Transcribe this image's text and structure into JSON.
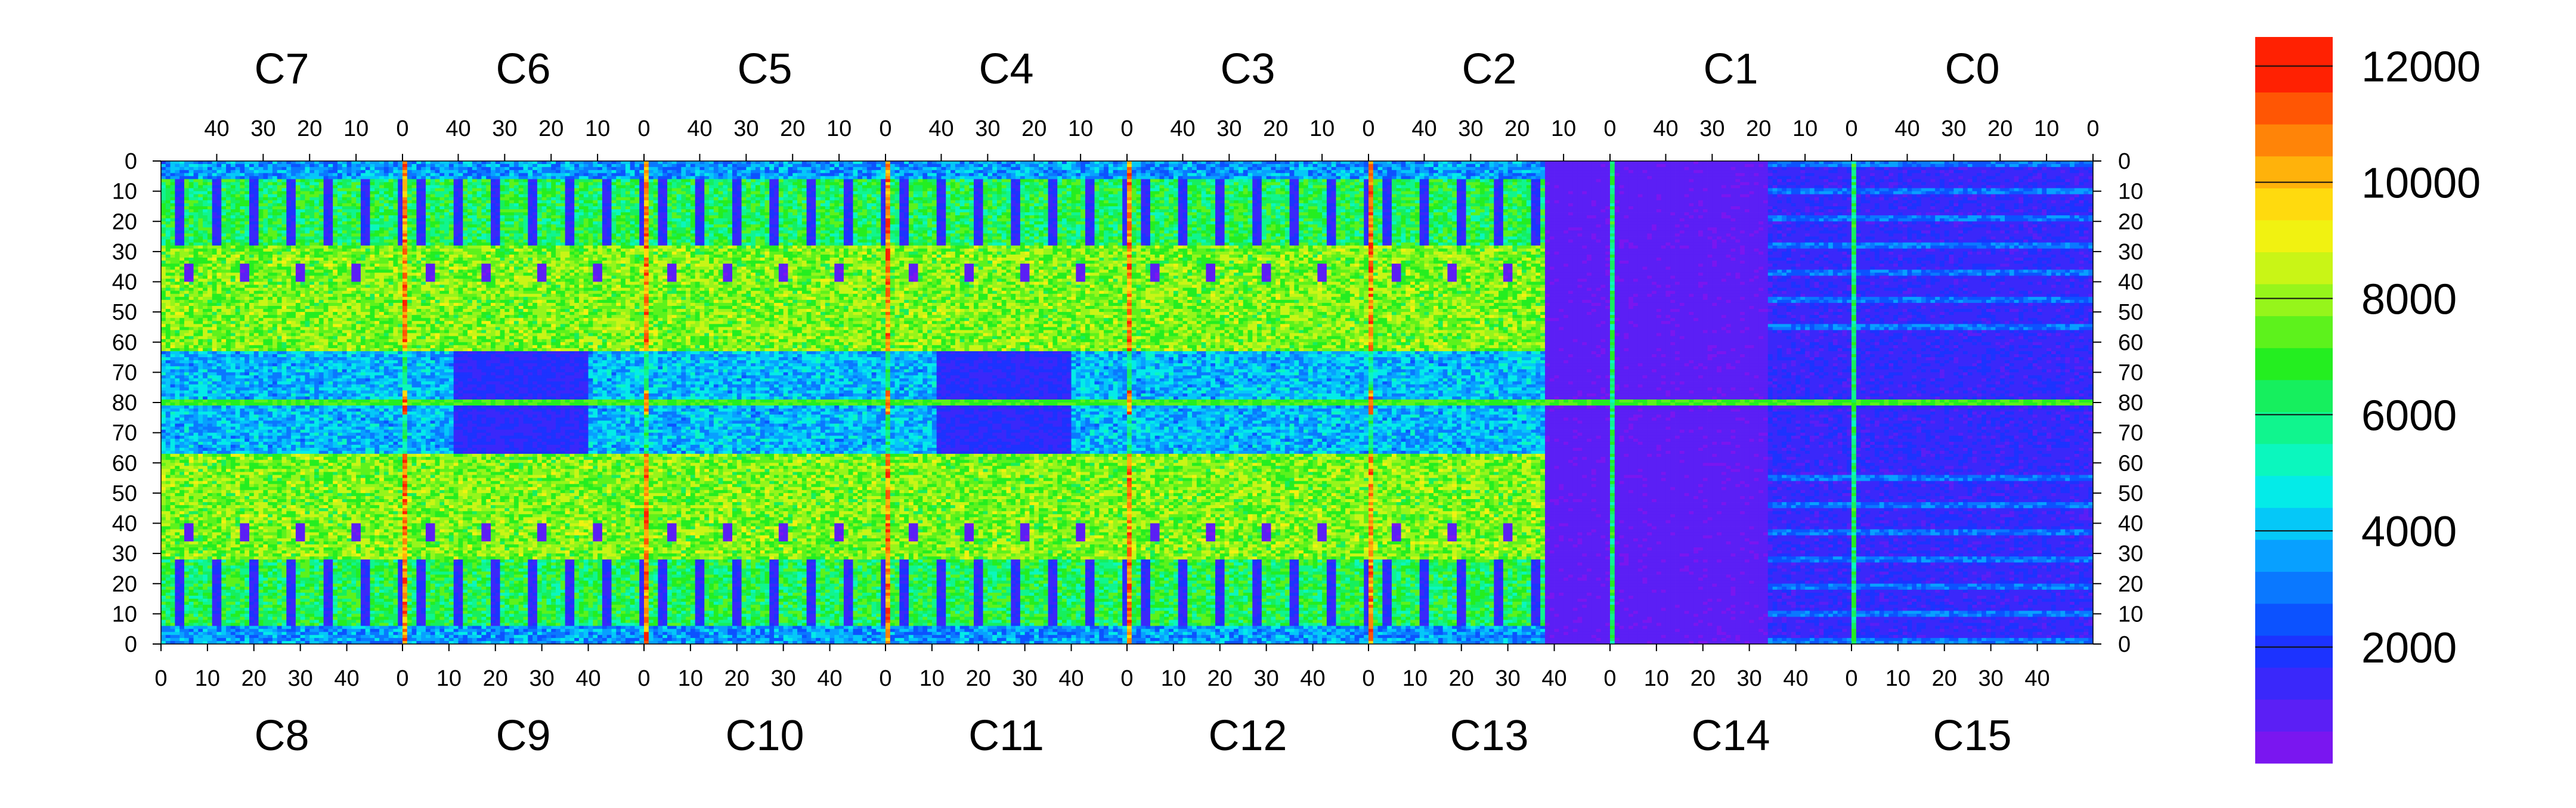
{
  "chart_data": {
    "type": "heatmap",
    "title": "",
    "xlabel": "",
    "ylabel": "",
    "grid": false,
    "legend": "colorbar-right",
    "value_range": [
      0,
      12500
    ],
    "colorbar": {
      "ticks": [
        {
          "value": 2000,
          "label": "2000"
        },
        {
          "value": 4000,
          "label": "4000"
        },
        {
          "value": 6000,
          "label": "6000"
        },
        {
          "value": 8000,
          "label": "8000"
        },
        {
          "value": 10000,
          "label": "10000"
        },
        {
          "value": 12000,
          "label": "12000"
        }
      ],
      "colors": [
        "#7a16f0",
        "#5b1ff5",
        "#3a28fa",
        "#1c33ff",
        "#0c52ff",
        "#0a78ff",
        "#08a0ff",
        "#05c8f8",
        "#04ebe8",
        "#0bf7be",
        "#10f58e",
        "#16ef5e",
        "#24ee20",
        "#5df21c",
        "#96f51b",
        "#c9f516",
        "#f1f211",
        "#ffda0e",
        "#ffb20b",
        "#ff8408",
        "#ff5604",
        "#ff2102"
      ],
      "band_max": [
        550,
        1100,
        1650,
        2200,
        2750,
        3300,
        3850,
        4400,
        4950,
        5500,
        6050,
        6600,
        7150,
        7700,
        8250,
        8800,
        9350,
        9900,
        10450,
        11000,
        11550,
        12500
      ]
    },
    "top_chips": [
      "C7",
      "C6",
      "C5",
      "C4",
      "C3",
      "C2",
      "C1",
      "C0"
    ],
    "bottom_chips": [
      "C8",
      "C9",
      "C10",
      "C11",
      "C12",
      "C13",
      "C14",
      "C15"
    ],
    "top_ticks": [
      "40",
      "30",
      "20",
      "10",
      "0"
    ],
    "bottom_ticks": [
      "0",
      "10",
      "20",
      "30",
      "40"
    ],
    "y_ticks_top_half": [
      "0",
      "10",
      "20",
      "30",
      "40",
      "50",
      "60",
      "70",
      "80"
    ],
    "y_ticks_bottom_half": [
      "70",
      "60",
      "50",
      "40",
      "30",
      "20",
      "10",
      "0"
    ],
    "features": {
      "columns_per_chip": 52,
      "rows_per_half": 80,
      "bottom_row_count": 80,
      "typical_intensity": {
        "background": 2200,
        "pad": 5200,
        "plateau": 7700,
        "boundary_column": 12000,
        "dead_region": 500
      },
      "dead_region_chips": [
        "C13",
        "C14"
      ],
      "plateau_rows": {
        "top_half": [
          30,
          62
        ],
        "bottom_half": [
          30,
          62
        ]
      },
      "bright_center_row": 80
    }
  }
}
